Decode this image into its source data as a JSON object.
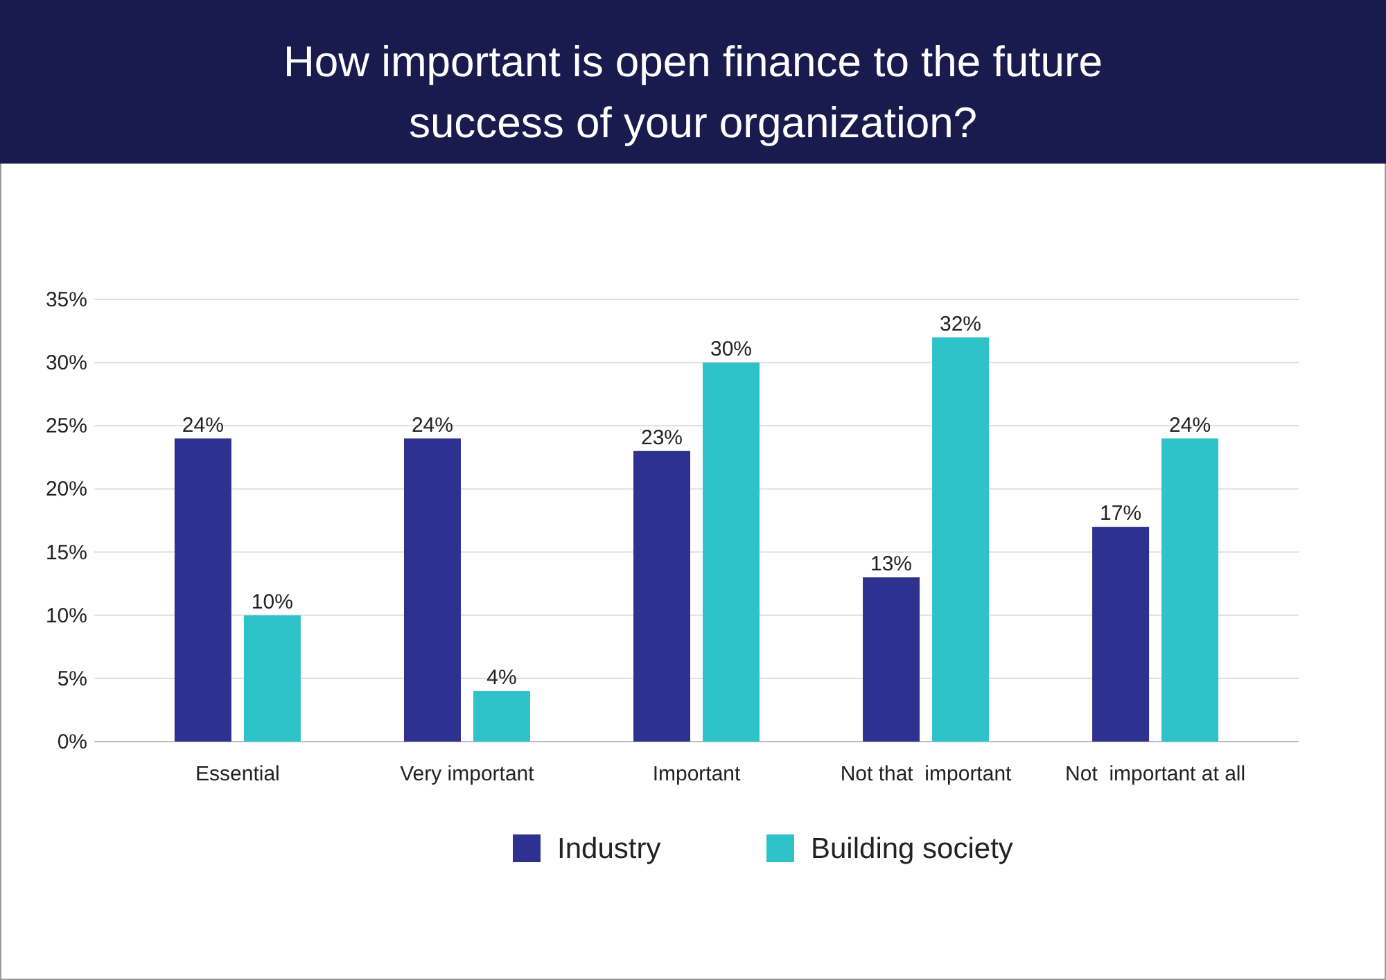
{
  "chart_data": {
    "type": "bar",
    "title": "How important is open finance to the future success of your organization?",
    "categories": [
      "Essential",
      "Very important",
      "Important",
      "Not that  important",
      "Not  important at all"
    ],
    "series": [
      {
        "name": "Industry",
        "color": "#2e3190",
        "values": [
          24,
          24,
          23,
          13,
          17
        ],
        "value_labels": [
          "24%",
          "24%",
          "23%",
          "13%",
          "17%"
        ]
      },
      {
        "name": "Building society",
        "color": "#2ec3c8",
        "values": [
          10,
          4,
          30,
          32,
          24
        ],
        "value_labels": [
          "10%",
          "4%",
          "30%",
          "32%",
          "24%"
        ]
      }
    ],
    "ylim": [
      0,
      35
    ],
    "yticks": [
      {
        "value": 0,
        "label": "0%"
      },
      {
        "value": 5,
        "label": "5%"
      },
      {
        "value": 10,
        "label": "10%"
      },
      {
        "value": 15,
        "label": "15%"
      },
      {
        "value": 20,
        "label": "20%"
      },
      {
        "value": 25,
        "label": "25%"
      },
      {
        "value": 30,
        "label": "30%"
      },
      {
        "value": 35,
        "label": "35%"
      }
    ],
    "grid": "y",
    "legend": "bottom"
  }
}
